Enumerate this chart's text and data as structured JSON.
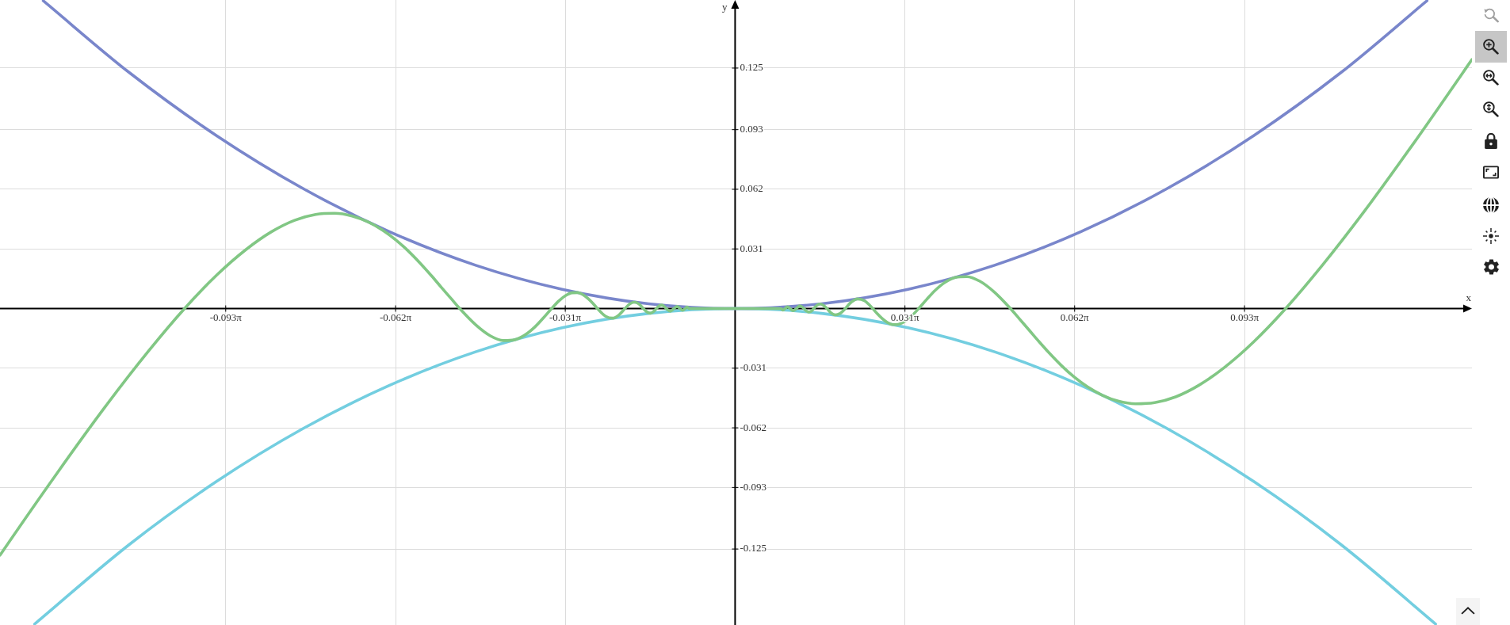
{
  "chart_data": {
    "type": "line",
    "xlabel": "x",
    "ylabel": "y",
    "xlim": [
      -0.425,
      0.426
    ],
    "ylim": [
      -0.1645,
      0.1604
    ],
    "xticks": [
      {
        "value": -0.2945,
        "label": "-0.093π"
      },
      {
        "value": -0.1963,
        "label": "-0.062π"
      },
      {
        "value": -0.0982,
        "label": "-0.031π"
      },
      {
        "value": 0.0982,
        "label": "0.031π"
      },
      {
        "value": 0.1963,
        "label": "0.062π"
      },
      {
        "value": 0.2945,
        "label": "0.093π"
      }
    ],
    "yticks": [
      -0.125,
      -0.093,
      -0.062,
      -0.031,
      0.031,
      0.062,
      0.093,
      0.125
    ],
    "grid": true,
    "marker": "none",
    "line_style": "solid",
    "series": [
      {
        "color": "#81c784",
        "x": [
          -0.425,
          -0.4244,
          -0.3918,
          -0.3638,
          -0.3395,
          -0.3183,
          -0.2996,
          -0.2829,
          -0.2681,
          -0.2547,
          -0.2425,
          -0.2315,
          -0.2214,
          -0.2122,
          -0.2037,
          -0.1959,
          -0.1886,
          -0.1819,
          -0.1756,
          -0.1698,
          -0.1643,
          -0.1592,
          -0.1498,
          -0.1415,
          -0.134,
          -0.1273,
          -0.1213,
          -0.1157,
          -0.1107,
          -0.1061,
          -0.1019,
          -0.0979,
          -0.0943,
          -0.0909,
          -0.0878,
          -0.0849,
          -0.0821,
          -0.0796,
          -0.0749,
          -0.0707,
          -0.067,
          -0.0637,
          -0.0606,
          -0.0579,
          -0.0554,
          -0.0531,
          -0.0509,
          -0.049,
          -0.0472,
          -0.0455,
          -0.0439,
          -0.0424,
          -0.0411,
          -0.0398,
          -0.0375,
          -0.0354,
          -0.0335,
          -0.0318,
          -0.0303,
          -0.0289,
          -0.0277,
          -0.0265,
          0,
          0.0265,
          0.0277,
          0.0289,
          0.0303,
          0.0318,
          0.0335,
          0.0354,
          0.0375,
          0.0398,
          0.0411,
          0.0424,
          0.0439,
          0.0455,
          0.0472,
          0.049,
          0.0509,
          0.0531,
          0.0554,
          0.0579,
          0.0606,
          0.0637,
          0.067,
          0.0707,
          0.0749,
          0.0796,
          0.0821,
          0.0849,
          0.0878,
          0.0909,
          0.0943,
          0.0979,
          0.1019,
          0.1061,
          0.1107,
          0.1157,
          0.1213,
          0.1273,
          0.134,
          0.1415,
          0.1498,
          0.1592,
          0.1643,
          0.1698,
          0.1756,
          0.1819,
          0.1886,
          0.1959,
          0.2037,
          0.2122,
          0.2214,
          0.2315,
          0.2425,
          0.2547,
          0.2681,
          0.2829,
          0.2996,
          0.3183,
          0.3395,
          0.3638,
          0.3918,
          0.4244,
          0.426
        ],
        "values": [
          -0.1282,
          -0.1274,
          -0.0853,
          -0.0506,
          -0.0225,
          0,
          0.0175,
          0.0306,
          0.0399,
          0.0459,
          0.0489,
          0.0495,
          0.0481,
          0.045,
          0.0407,
          0.0355,
          0.0296,
          0.0234,
          0.0171,
          0.011,
          0.0053,
          0,
          -0.0086,
          -0.0142,
          -0.0166,
          -0.0162,
          -0.0136,
          -0.0095,
          -0.0047,
          0,
          0.004,
          0.0068,
          0.0082,
          0.0083,
          0.0071,
          0.0051,
          0.0026,
          0,
          -0.004,
          -0.005,
          -0.0032,
          0,
          0.0026,
          0.0033,
          0.0022,
          0,
          -0.0018,
          -0.0024,
          -0.0016,
          0,
          0.0014,
          0.0018,
          0.0012,
          0,
          -0.0014,
          0,
          0.0011,
          0,
          -0.0009,
          0,
          0.0008,
          0,
          0,
          0,
          -0.0008,
          0,
          0.0009,
          0,
          -0.0011,
          0,
          0.0014,
          0,
          -0.0012,
          -0.0018,
          -0.0014,
          0,
          0.0016,
          0.0024,
          0.0018,
          0,
          -0.0022,
          -0.0033,
          -0.0026,
          0,
          0.0032,
          0.005,
          0.004,
          0,
          -0.0026,
          -0.0051,
          -0.0071,
          -0.0083,
          -0.0082,
          -0.0068,
          -0.004,
          0,
          0.0047,
          0.0095,
          0.0136,
          0.0162,
          0.0166,
          0.0142,
          0.0086,
          0,
          -0.0053,
          -0.011,
          -0.0171,
          -0.0234,
          -0.0296,
          -0.0355,
          -0.0407,
          -0.045,
          -0.0481,
          -0.0495,
          -0.0489,
          -0.0459,
          -0.0399,
          -0.0306,
          -0.0175,
          0,
          0.0225,
          0.0506,
          0.0853,
          0.1274,
          0.1295
        ]
      },
      {
        "color": "#7986cb",
        "x": [
          -0.4,
          -0.35,
          -0.3,
          -0.25,
          -0.2,
          -0.15,
          -0.1,
          -0.05,
          0,
          0.05,
          0.1,
          0.15,
          0.2,
          0.25,
          0.3,
          0.35,
          0.4
        ],
        "values": [
          0.16,
          0.1225,
          0.09,
          0.0625,
          0.04,
          0.0225,
          0.01,
          0.0025,
          0,
          0.0025,
          0.01,
          0.0225,
          0.04,
          0.0625,
          0.09,
          0.1225,
          0.16
        ]
      },
      {
        "color": "#73cee0",
        "x": [
          -0.405,
          -0.35,
          -0.3,
          -0.25,
          -0.2,
          -0.15,
          -0.1,
          -0.05,
          0,
          0.05,
          0.1,
          0.15,
          0.2,
          0.25,
          0.3,
          0.35,
          0.405
        ],
        "values": [
          -0.164,
          -0.1225,
          -0.09,
          -0.0625,
          -0.04,
          -0.0225,
          -0.01,
          -0.0025,
          0,
          -0.0025,
          -0.01,
          -0.0225,
          -0.04,
          -0.0625,
          -0.09,
          -0.1225,
          -0.164
        ]
      }
    ]
  }
}
